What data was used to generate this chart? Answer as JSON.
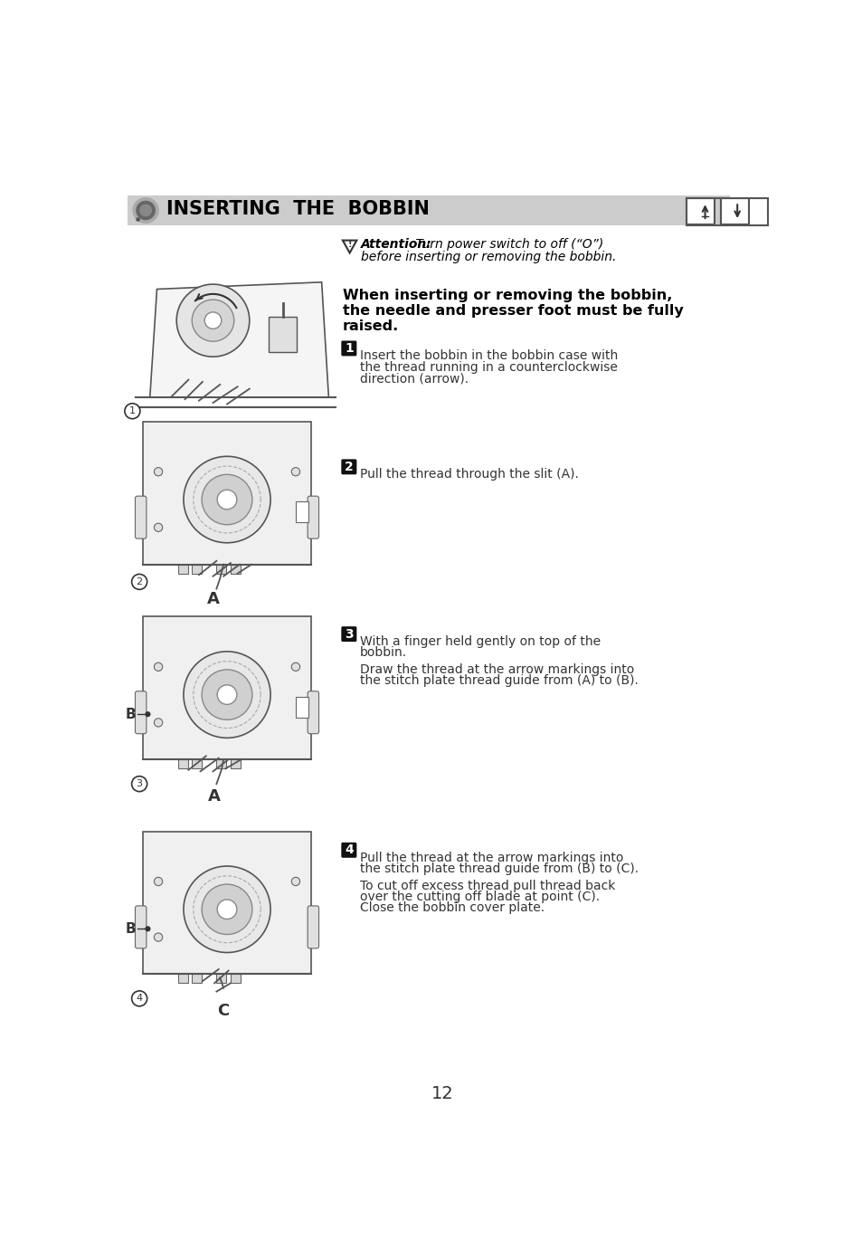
{
  "page_bg": "#ffffff",
  "header_bg": "#cccccc",
  "header_text": "INSERTING  THE  BOBBIN",
  "header_text_color": "#000000",
  "header_font_size": 15,
  "page_number": "12",
  "attention_bold": "Attention:",
  "step_badge_color": "#111111",
  "step_badge_text_color": "#ffffff",
  "diagram_border": "#555555",
  "diagram_fill": "#f0f0f0",
  "label_color": "#333333"
}
